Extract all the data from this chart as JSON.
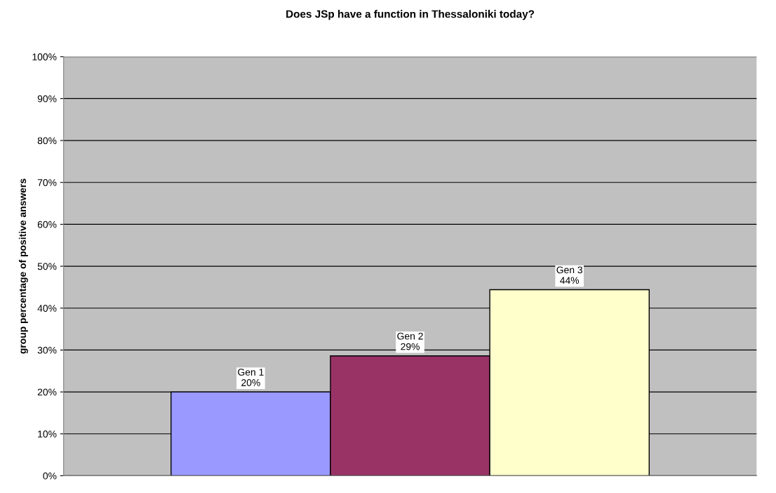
{
  "chart_data": {
    "type": "bar",
    "title": "Does JSp have a function in Thessaloniki today?",
    "ylabel": "group percentage of positive answers",
    "categories": [
      null
    ],
    "series": [
      {
        "name": "Gen 1",
        "color": "#9999ff",
        "values": [
          20
        ],
        "value_labels": [
          "20%"
        ]
      },
      {
        "name": "Gen 2",
        "color": "#993366",
        "values": [
          28.6
        ],
        "value_labels": [
          "29%"
        ]
      },
      {
        "name": "Gen 3",
        "color": "#ffffcc",
        "values": [
          44.4
        ],
        "value_labels": [
          "44%"
        ]
      }
    ],
    "ylim": [
      0,
      100
    ],
    "yticks": [
      {
        "value": 0,
        "label": "0%"
      },
      {
        "value": 10,
        "label": "10%"
      },
      {
        "value": 20,
        "label": "20%"
      },
      {
        "value": 30,
        "label": "30%"
      },
      {
        "value": 40,
        "label": "40%"
      },
      {
        "value": 50,
        "label": "50%"
      },
      {
        "value": 60,
        "label": "60%"
      },
      {
        "value": 70,
        "label": "70%"
      },
      {
        "value": 80,
        "label": "80%"
      },
      {
        "value": 90,
        "label": "90%"
      },
      {
        "value": 100,
        "label": "100%"
      }
    ],
    "grid": "y"
  }
}
